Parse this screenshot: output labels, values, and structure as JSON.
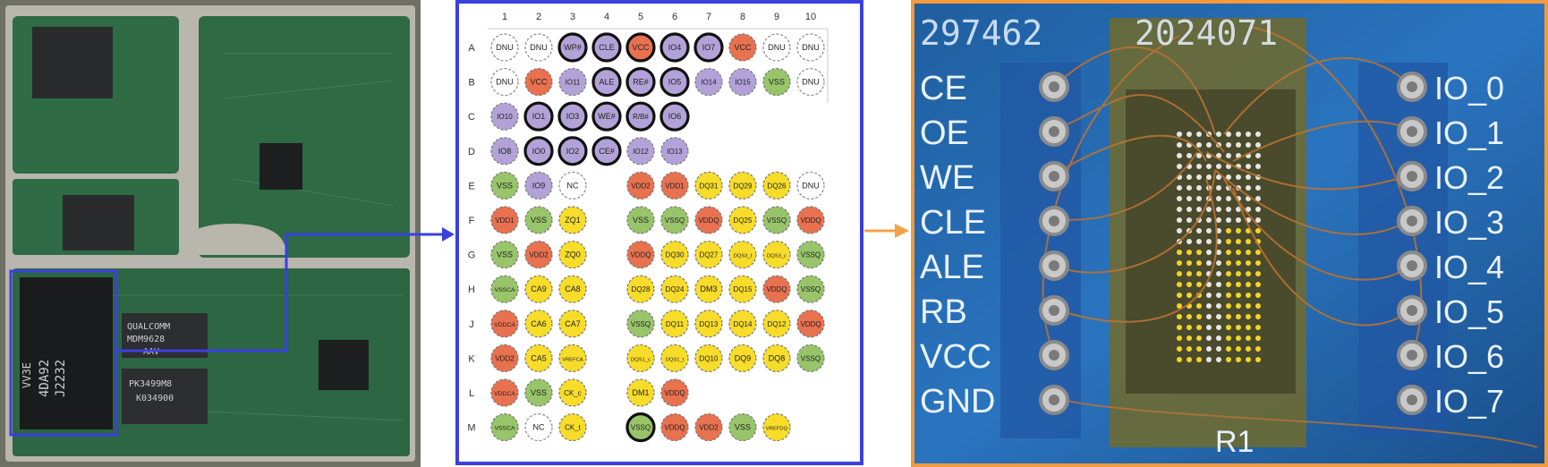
{
  "board_photo": {
    "chips": [
      {
        "id": "top-left-chip",
        "lines": [
          "...",
          "...",
          "..."
        ]
      },
      {
        "id": "qualcomm-chip",
        "lines": [
          "QUALCOMM",
          "MDM9628",
          "AAV"
        ]
      },
      {
        "id": "pk-chip",
        "lines": [
          "PK3499M8",
          "K034900"
        ]
      },
      {
        "id": "nand-chip",
        "lines": [
          "VV3E",
          "4DA92",
          "J2232"
        ]
      }
    ]
  },
  "pinout": {
    "columns": [
      "1",
      "2",
      "3",
      "4",
      "5",
      "6",
      "7",
      "8",
      "9",
      "10"
    ],
    "rows": [
      "A",
      "B",
      "C",
      "D",
      "E",
      "F",
      "G",
      "H",
      "J",
      "K",
      "L",
      "M"
    ],
    "colors": {
      "purple": "#b2a2d8",
      "red": "#e8714f",
      "green": "#98c46a",
      "yellow": "#f7dc2a",
      "white": "#ffffff",
      "panel_border": "#3a3fe0",
      "arrow_orange": "#f5a04a"
    },
    "pins": [
      {
        "r": "A",
        "c": 1,
        "label": "DNU",
        "color": "white",
        "bold": false
      },
      {
        "r": "A",
        "c": 2,
        "label": "DNU",
        "color": "white",
        "bold": false
      },
      {
        "r": "A",
        "c": 3,
        "label": "WP#",
        "color": "purple",
        "bold": true
      },
      {
        "r": "A",
        "c": 4,
        "label": "CLE",
        "color": "purple",
        "bold": true
      },
      {
        "r": "A",
        "c": 5,
        "label": "VCC",
        "color": "red",
        "bold": true
      },
      {
        "r": "A",
        "c": 6,
        "label": "IO4",
        "color": "purple",
        "bold": true
      },
      {
        "r": "A",
        "c": 7,
        "label": "IO7",
        "color": "purple",
        "bold": true
      },
      {
        "r": "A",
        "c": 8,
        "label": "VCC",
        "color": "red",
        "bold": false
      },
      {
        "r": "A",
        "c": 9,
        "label": "DNU",
        "color": "white",
        "bold": false
      },
      {
        "r": "A",
        "c": 10,
        "label": "DNU",
        "color": "white",
        "bold": false
      },
      {
        "r": "B",
        "c": 1,
        "label": "DNU",
        "color": "white",
        "bold": false
      },
      {
        "r": "B",
        "c": 2,
        "label": "VCC",
        "color": "red",
        "bold": false
      },
      {
        "r": "B",
        "c": 3,
        "label": "IO11",
        "color": "purple",
        "bold": false
      },
      {
        "r": "B",
        "c": 4,
        "label": "ALE",
        "color": "purple",
        "bold": true
      },
      {
        "r": "B",
        "c": 5,
        "label": "RE#",
        "color": "purple",
        "bold": true
      },
      {
        "r": "B",
        "c": 6,
        "label": "IO5",
        "color": "purple",
        "bold": true
      },
      {
        "r": "B",
        "c": 7,
        "label": "IO14",
        "color": "purple",
        "bold": false
      },
      {
        "r": "B",
        "c": 8,
        "label": "IO15",
        "color": "purple",
        "bold": false
      },
      {
        "r": "B",
        "c": 9,
        "label": "VSS",
        "color": "green",
        "bold": false
      },
      {
        "r": "B",
        "c": 10,
        "label": "DNU",
        "color": "white",
        "bold": false
      },
      {
        "r": "C",
        "c": 1,
        "label": "IO10",
        "color": "purple",
        "bold": false
      },
      {
        "r": "C",
        "c": 2,
        "label": "IO1",
        "color": "purple",
        "bold": true
      },
      {
        "r": "C",
        "c": 3,
        "label": "IO3",
        "color": "purple",
        "bold": true
      },
      {
        "r": "C",
        "c": 4,
        "label": "WE#",
        "color": "purple",
        "bold": true
      },
      {
        "r": "C",
        "c": 5,
        "label": "R/B#",
        "color": "purple",
        "bold": true
      },
      {
        "r": "C",
        "c": 6,
        "label": "IO6",
        "color": "purple",
        "bold": true
      },
      {
        "r": "D",
        "c": 1,
        "label": "IO8",
        "color": "purple",
        "bold": false
      },
      {
        "r": "D",
        "c": 2,
        "label": "IO0",
        "color": "purple",
        "bold": true
      },
      {
        "r": "D",
        "c": 3,
        "label": "IO2",
        "color": "purple",
        "bold": true
      },
      {
        "r": "D",
        "c": 4,
        "label": "CE#",
        "color": "purple",
        "bold": true
      },
      {
        "r": "D",
        "c": 5,
        "label": "IO12",
        "color": "purple",
        "bold": false
      },
      {
        "r": "D",
        "c": 6,
        "label": "IO13",
        "color": "purple",
        "bold": false
      },
      {
        "r": "E",
        "c": 1,
        "label": "VSS",
        "color": "green",
        "bold": false
      },
      {
        "r": "E",
        "c": 2,
        "label": "IO9",
        "color": "purple",
        "bold": false
      },
      {
        "r": "E",
        "c": 3,
        "label": "NC",
        "color": "white",
        "bold": false
      },
      {
        "r": "E",
        "c": 5,
        "label": "VDD2",
        "color": "red",
        "bold": false
      },
      {
        "r": "E",
        "c": 6,
        "label": "VDD1",
        "color": "red",
        "bold": false
      },
      {
        "r": "E",
        "c": 7,
        "label": "DQ31",
        "color": "yellow",
        "bold": false
      },
      {
        "r": "E",
        "c": 8,
        "label": "DQ29",
        "color": "yellow",
        "bold": false
      },
      {
        "r": "E",
        "c": 9,
        "label": "DQ26",
        "color": "yellow",
        "bold": false
      },
      {
        "r": "E",
        "c": 10,
        "label": "DNU",
        "color": "white",
        "bold": false
      },
      {
        "r": "F",
        "c": 1,
        "label": "VDD1",
        "color": "red",
        "bold": false
      },
      {
        "r": "F",
        "c": 2,
        "label": "VSS",
        "color": "green",
        "bold": false
      },
      {
        "r": "F",
        "c": 3,
        "label": "ZQ1",
        "color": "yellow",
        "bold": false
      },
      {
        "r": "F",
        "c": 5,
        "label": "VSS",
        "color": "green",
        "bold": false
      },
      {
        "r": "F",
        "c": 6,
        "label": "VSSQ",
        "color": "green",
        "bold": false
      },
      {
        "r": "F",
        "c": 7,
        "label": "VDDQ",
        "color": "red",
        "bold": false
      },
      {
        "r": "F",
        "c": 8,
        "label": "DQ25",
        "color": "yellow",
        "bold": false
      },
      {
        "r": "F",
        "c": 9,
        "label": "VSSQ",
        "color": "green",
        "bold": false
      },
      {
        "r": "F",
        "c": 10,
        "label": "VDDQ",
        "color": "red",
        "bold": false
      },
      {
        "r": "G",
        "c": 1,
        "label": "VSS",
        "color": "green",
        "bold": false
      },
      {
        "r": "G",
        "c": 2,
        "label": "VDD2",
        "color": "red",
        "bold": false
      },
      {
        "r": "G",
        "c": 3,
        "label": "ZQ0",
        "color": "yellow",
        "bold": false
      },
      {
        "r": "G",
        "c": 5,
        "label": "VDDQ",
        "color": "red",
        "bold": false
      },
      {
        "r": "G",
        "c": 6,
        "label": "DQ30",
        "color": "yellow",
        "bold": false
      },
      {
        "r": "G",
        "c": 7,
        "label": "DQ27",
        "color": "yellow",
        "bold": false
      },
      {
        "r": "G",
        "c": 8,
        "label": "DQS3_t",
        "color": "yellow",
        "bold": false
      },
      {
        "r": "G",
        "c": 9,
        "label": "DQS3_c",
        "color": "yellow",
        "bold": false
      },
      {
        "r": "G",
        "c": 10,
        "label": "VSSQ",
        "color": "green",
        "bold": false
      },
      {
        "r": "H",
        "c": 1,
        "label": "VSSCA",
        "color": "green",
        "bold": false
      },
      {
        "r": "H",
        "c": 2,
        "label": "CA9",
        "color": "yellow",
        "bold": false
      },
      {
        "r": "H",
        "c": 3,
        "label": "CA8",
        "color": "yellow",
        "bold": false
      },
      {
        "r": "H",
        "c": 5,
        "label": "DQ28",
        "color": "yellow",
        "bold": false
      },
      {
        "r": "H",
        "c": 6,
        "label": "DQ24",
        "color": "yellow",
        "bold": false
      },
      {
        "r": "H",
        "c": 7,
        "label": "DM3",
        "color": "yellow",
        "bold": false
      },
      {
        "r": "H",
        "c": 8,
        "label": "DQ15",
        "color": "yellow",
        "bold": false
      },
      {
        "r": "H",
        "c": 9,
        "label": "VDDQ",
        "color": "red",
        "bold": false
      },
      {
        "r": "H",
        "c": 10,
        "label": "VSSQ",
        "color": "green",
        "bold": false
      },
      {
        "r": "J",
        "c": 1,
        "label": "VDDCA",
        "color": "red",
        "bold": false
      },
      {
        "r": "J",
        "c": 2,
        "label": "CA6",
        "color": "yellow",
        "bold": false
      },
      {
        "r": "J",
        "c": 3,
        "label": "CA7",
        "color": "yellow",
        "bold": false
      },
      {
        "r": "J",
        "c": 5,
        "label": "VSSQ",
        "color": "green",
        "bold": false
      },
      {
        "r": "J",
        "c": 6,
        "label": "DQ11",
        "color": "yellow",
        "bold": false
      },
      {
        "r": "J",
        "c": 7,
        "label": "DQ13",
        "color": "yellow",
        "bold": false
      },
      {
        "r": "J",
        "c": 8,
        "label": "DQ14",
        "color": "yellow",
        "bold": false
      },
      {
        "r": "J",
        "c": 9,
        "label": "DQ12",
        "color": "yellow",
        "bold": false
      },
      {
        "r": "J",
        "c": 10,
        "label": "VDDQ",
        "color": "red",
        "bold": false
      },
      {
        "r": "K",
        "c": 1,
        "label": "VDD2",
        "color": "red",
        "bold": false
      },
      {
        "r": "K",
        "c": 2,
        "label": "CA5",
        "color": "yellow",
        "bold": false
      },
      {
        "r": "K",
        "c": 3,
        "label": "VREFCA",
        "color": "yellow",
        "bold": false
      },
      {
        "r": "K",
        "c": 5,
        "label": "DQS1_c",
        "color": "yellow",
        "bold": false
      },
      {
        "r": "K",
        "c": 6,
        "label": "DQS1_t",
        "color": "yellow",
        "bold": false
      },
      {
        "r": "K",
        "c": 7,
        "label": "DQ10",
        "color": "yellow",
        "bold": false
      },
      {
        "r": "K",
        "c": 8,
        "label": "DQ9",
        "color": "yellow",
        "bold": false
      },
      {
        "r": "K",
        "c": 9,
        "label": "DQ8",
        "color": "yellow",
        "bold": false
      },
      {
        "r": "K",
        "c": 10,
        "label": "VSSQ",
        "color": "green",
        "bold": false
      },
      {
        "r": "L",
        "c": 1,
        "label": "VDDCA",
        "color": "red",
        "bold": false
      },
      {
        "r": "L",
        "c": 2,
        "label": "VSS",
        "color": "green",
        "bold": false
      },
      {
        "r": "L",
        "c": 3,
        "label": "CK_c",
        "color": "yellow",
        "bold": false
      },
      {
        "r": "L",
        "c": 5,
        "label": "DM1",
        "color": "yellow",
        "bold": false
      },
      {
        "r": "L",
        "c": 6,
        "label": "VDDQ",
        "color": "red",
        "bold": false
      },
      {
        "r": "M",
        "c": 1,
        "label": "VSSCA",
        "color": "green",
        "bold": false
      },
      {
        "r": "M",
        "c": 2,
        "label": "NC",
        "color": "white",
        "bold": false
      },
      {
        "r": "M",
        "c": 3,
        "label": "CK_t",
        "color": "yellow",
        "bold": false
      },
      {
        "r": "M",
        "c": 5,
        "label": "VSSQ",
        "color": "green",
        "bold": true
      },
      {
        "r": "M",
        "c": 6,
        "label": "VDDQ",
        "color": "red",
        "bold": false
      },
      {
        "r": "M",
        "c": 7,
        "label": "VDD2",
        "color": "red",
        "bold": false
      },
      {
        "r": "M",
        "c": 8,
        "label": "VSS",
        "color": "green",
        "bold": false
      },
      {
        "r": "M",
        "c": 9,
        "label": "VREFDQ",
        "color": "yellow",
        "bold": false
      }
    ]
  },
  "wired_photo": {
    "top_text_left": "297462",
    "top_text_right": "2024071",
    "left_labels": [
      "CE",
      "OE",
      "WE",
      "CLE",
      "ALE",
      "RB",
      "VCC",
      "GND"
    ],
    "right_labels": [
      "IO_0",
      "IO_1",
      "IO_2",
      "IO_3",
      "IO_4",
      "IO_5",
      "IO_6",
      "IO_7"
    ],
    "bottom_label": "R1"
  }
}
